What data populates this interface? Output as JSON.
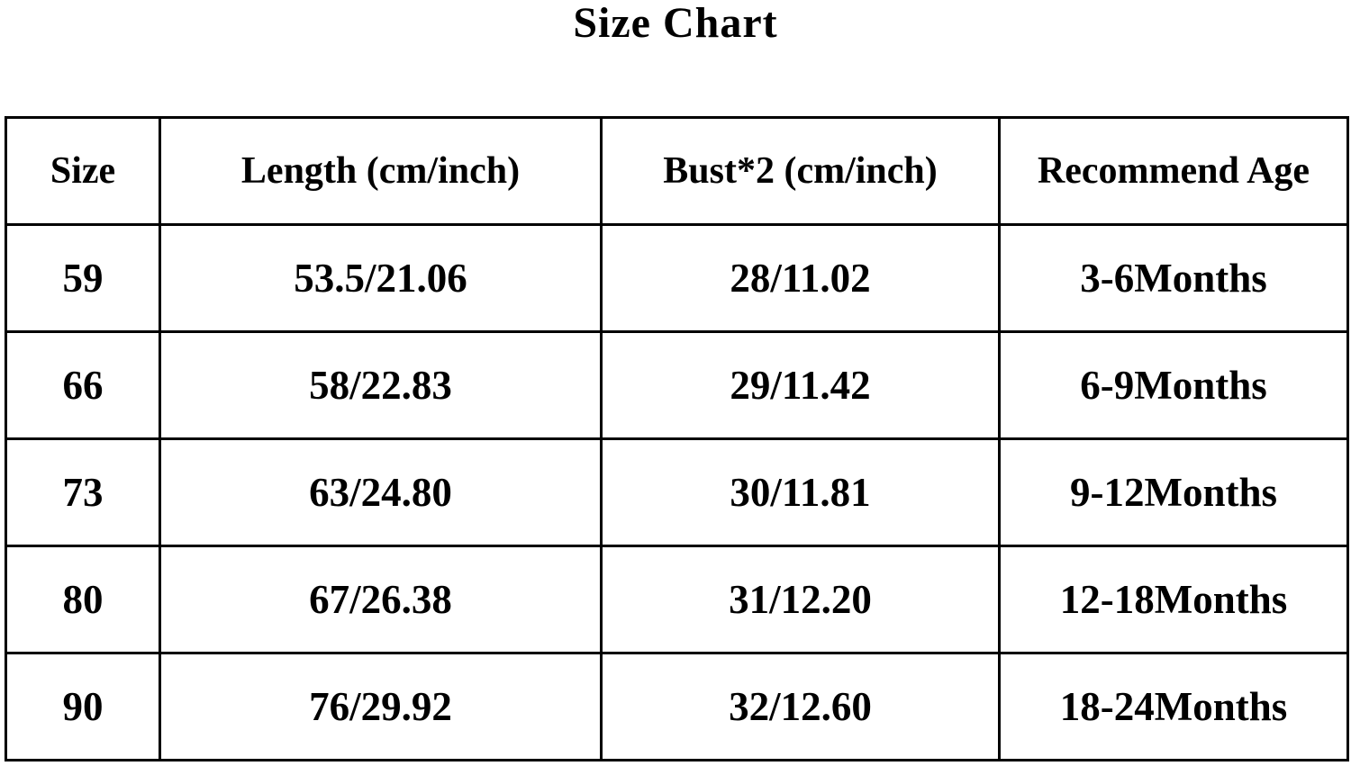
{
  "title": "Size Chart",
  "table": {
    "headers": [
      "Size",
      "Length (cm/inch)",
      "Bust*2 (cm/inch)",
      "Recommend Age"
    ],
    "rows": [
      [
        "59",
        "53.5/21.06",
        "28/11.02",
        "3-6Months"
      ],
      [
        "66",
        "58/22.83",
        "29/11.42",
        "6-9Months"
      ],
      [
        "73",
        "63/24.80",
        "30/11.81",
        "9-12Months"
      ],
      [
        "80",
        "67/26.38",
        "31/12.20",
        "12-18Months"
      ],
      [
        "90",
        "76/29.92",
        "32/12.60",
        "18-24Months"
      ]
    ]
  }
}
